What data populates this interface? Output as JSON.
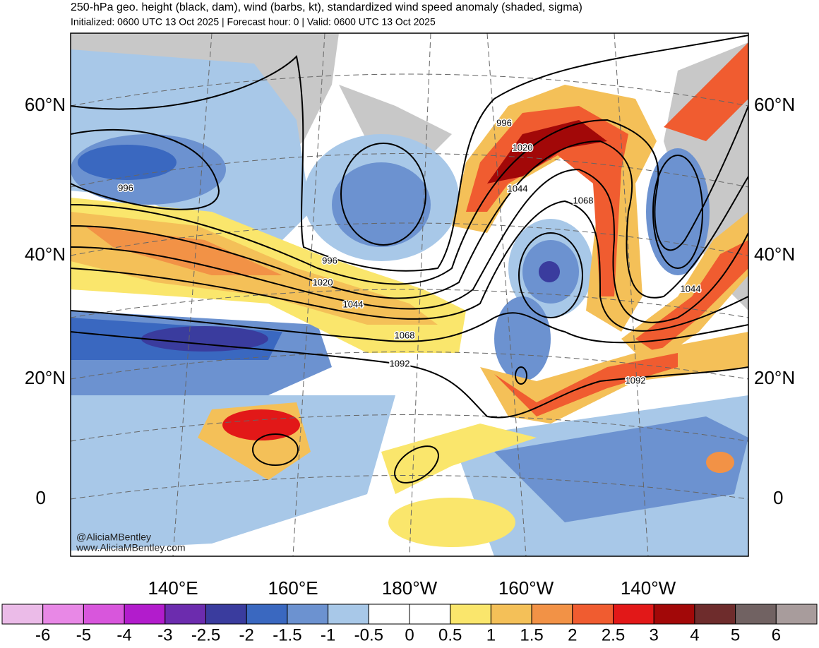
{
  "title": "250-hPa geo. height (black, dam), wind (barbs, kt), standardized wind speed anomaly (shaded, sigma)",
  "subtitle": "Initialized: 0600 UTC 13 Oct 2025 | Forecast hour: 0 | Valid: 0600 UTC 13 Oct 2025",
  "map": {
    "lat_labels_left": [
      "60°N",
      "40°N",
      "20°N",
      "0"
    ],
    "lat_labels_right": [
      "60°N",
      "40°N",
      "20°N",
      "0"
    ],
    "lon_labels": [
      "140°E",
      "160°E",
      "180°W",
      "160°W",
      "140°W"
    ],
    "contour_labels": [
      "996",
      "996",
      "1020",
      "1044",
      "1068",
      "1092",
      "996",
      "1020",
      "1044",
      "1068",
      "1044",
      "1092"
    ],
    "credits": [
      "@AliciaMBentley",
      "www.AliciaMBentley.com"
    ]
  },
  "colorbar": {
    "colors": [
      "#ebbbe8",
      "#e888e6",
      "#d856dc",
      "#b21ccc",
      "#6c2cae",
      "#3a3c9e",
      "#3a68c0",
      "#6c92d0",
      "#a8c8e8",
      "#ffffff",
      "#ffffff",
      "#fae66c",
      "#f4c058",
      "#f29246",
      "#f05c30",
      "#e21818",
      "#a20808",
      "#6e2c2c",
      "#716262",
      "#a89c9c"
    ],
    "labels": [
      "-6",
      "-5",
      "-4",
      "-3",
      "-2.5",
      "-2",
      "-1.5",
      "-1",
      "-0.5",
      "0",
      "0.5",
      "1",
      "1.5",
      "2",
      "2.5",
      "3",
      "4",
      "5",
      "6"
    ]
  }
}
